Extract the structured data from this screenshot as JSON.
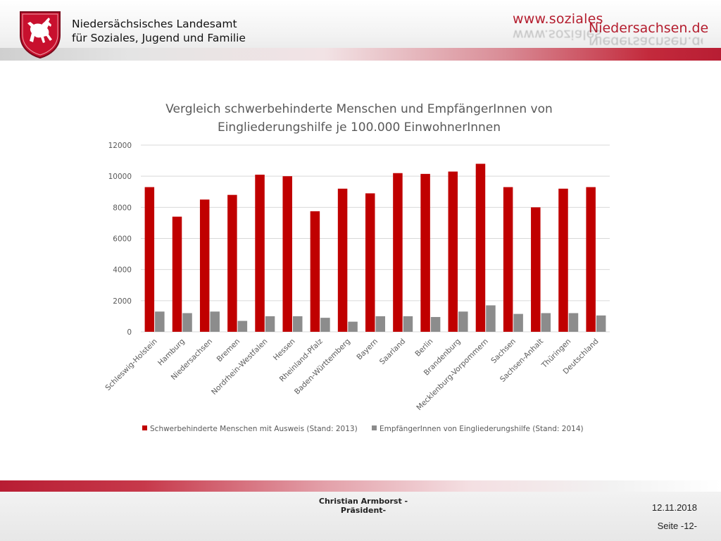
{
  "header": {
    "agency_line1": "Niedersächsisches Landesamt",
    "agency_line2": "für Soziales, Jugend und Familie",
    "website_line1": "www.soziales",
    "website_line2": "Niedersachsen.de"
  },
  "colors": {
    "brand_red": "#b41d2e",
    "series_red": "#c00000",
    "series_gray": "#8c8c8c",
    "grid": "#d9d9d9"
  },
  "chart_data": {
    "type": "bar",
    "title_line1": "Vergleich schwerbehinderte Menschen und EmpfängerInnen von",
    "title_line2": "Eingliederungshilfe je 100.000 EinwohnerInnen",
    "categories": [
      "Schleswig-Holstein",
      "Hamburg",
      "Niedersachsen",
      "Bremen",
      "Nordrhein-Westfalen",
      "Hessen",
      "Rheinland-Pfalz",
      "Baden-Württemberg",
      "Bayern",
      "Saarland",
      "Berlin",
      "Brandenburg",
      "Mecklenburg-Vorpommern",
      "Sachsen",
      "Sachsen-Anhalt",
      "Thüringen",
      "Deutschland"
    ],
    "series": [
      {
        "name": "Schwerbehinderte Menschen mit Ausweis (Stand: 2013)",
        "color": "#c00000",
        "values": [
          9300,
          7400,
          8500,
          8800,
          10100,
          10000,
          7750,
          9200,
          8900,
          10200,
          10150,
          10300,
          10800,
          9300,
          8000,
          9200,
          9300
        ]
      },
      {
        "name": "EmpfängerInnen von Eingliederungshilfe (Stand: 2014)",
        "color": "#8c8c8c",
        "values": [
          1300,
          1200,
          1300,
          700,
          1000,
          1000,
          900,
          650,
          1000,
          1000,
          950,
          1300,
          1700,
          1150,
          1200,
          1200,
          1050
        ]
      }
    ],
    "yticks": [
      "0",
      "2000",
      "4000",
      "6000",
      "8000",
      "10000",
      "12000"
    ],
    "ylim": [
      0,
      12000
    ],
    "grid": true,
    "legend": "bottom"
  },
  "footer": {
    "presenter_line1": "Christian Armborst -",
    "presenter_line2": "Präsident-",
    "date": "12.11.2018",
    "page": "Seite -12-"
  }
}
